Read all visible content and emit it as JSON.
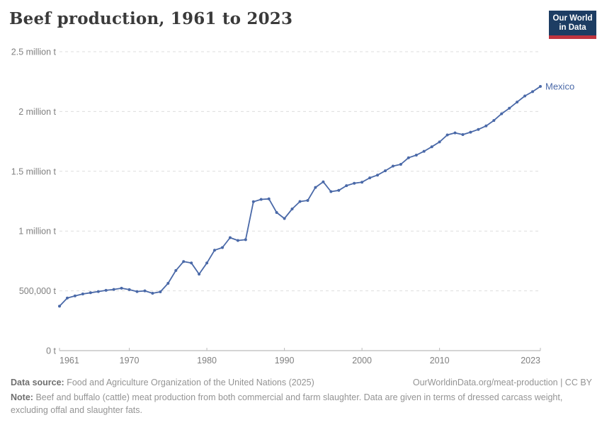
{
  "header": {
    "title": "Beef production, 1961 to 2023",
    "logo": {
      "line1": "Our World",
      "line2": "in Data"
    }
  },
  "chart_data": {
    "type": "line",
    "title": "Beef production, 1961 to 2023",
    "entity": "Mexico",
    "unit": "tonnes",
    "grid": "horizontal dashed",
    "legend_position": "end-of-line label",
    "xlim": [
      1961,
      2023
    ],
    "ylim": [
      0,
      2500000
    ],
    "x_ticks": [
      1961,
      1970,
      1980,
      1990,
      2000,
      2010,
      2023
    ],
    "y_ticks": [
      {
        "value": 0,
        "label": "0 t"
      },
      {
        "value": 500000,
        "label": "500,000 t"
      },
      {
        "value": 1000000,
        "label": "1 million t"
      },
      {
        "value": 1500000,
        "label": "1.5 million t"
      },
      {
        "value": 2000000,
        "label": "2 million t"
      },
      {
        "value": 2500000,
        "label": "2.5 million t"
      }
    ],
    "x": [
      1961,
      1962,
      1963,
      1964,
      1965,
      1966,
      1967,
      1968,
      1969,
      1970,
      1971,
      1972,
      1973,
      1974,
      1975,
      1976,
      1977,
      1978,
      1979,
      1980,
      1981,
      1982,
      1983,
      1984,
      1985,
      1986,
      1987,
      1988,
      1989,
      1990,
      1991,
      1992,
      1993,
      1994,
      1995,
      1996,
      1997,
      1998,
      1999,
      2000,
      2001,
      2002,
      2003,
      2004,
      2005,
      2006,
      2007,
      2008,
      2009,
      2010,
      2011,
      2012,
      2013,
      2014,
      2015,
      2016,
      2017,
      2018,
      2019,
      2020,
      2021,
      2022,
      2023
    ],
    "values": [
      372000,
      440000,
      458000,
      474000,
      484000,
      494000,
      504000,
      512000,
      522000,
      510000,
      494000,
      500000,
      480000,
      492000,
      563000,
      670000,
      745000,
      733000,
      640000,
      733000,
      840000,
      862000,
      945000,
      921000,
      928000,
      1245000,
      1265000,
      1269000,
      1155000,
      1105000,
      1185000,
      1247000,
      1256000,
      1365000,
      1412000,
      1330000,
      1340000,
      1380000,
      1400000,
      1409000,
      1445000,
      1468000,
      1504000,
      1543000,
      1558000,
      1613000,
      1635000,
      1667000,
      1705000,
      1745000,
      1804000,
      1821000,
      1807000,
      1827000,
      1850000,
      1879000,
      1925000,
      1981000,
      2027000,
      2079000,
      2130000,
      2166000,
      2210000
    ]
  },
  "colors": {
    "series": "#4a69a8",
    "grid": "#dddddd",
    "axis": "#a8a8a8",
    "tick": "#bbbbbb",
    "tick_text": "#808080",
    "title_text": "#3a3a3a",
    "logo_bg": "#1d3d63",
    "logo_red": "#c0343f"
  },
  "footer": {
    "datasource_label": "Data source:",
    "datasource": "Food and Agriculture Organization of the United Nations (2025)",
    "link": "OurWorldinData.org/meat-production | CC BY",
    "note_label": "Note:",
    "note": "Beef and buffalo (cattle) meat production from both commercial and farm slaughter. Data are given in terms of dressed carcass weight, excluding offal and slaughter fats."
  }
}
